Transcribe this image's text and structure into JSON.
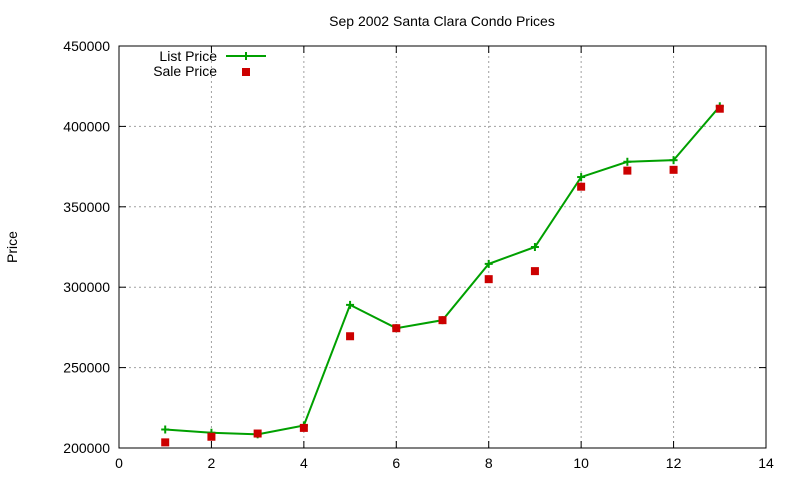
{
  "chart_data": {
    "type": "line",
    "title": "Sep 2002 Santa Clara Condo Prices",
    "xlabel": "",
    "ylabel": "Price",
    "xlim": [
      0,
      14
    ],
    "ylim": [
      200000,
      450000
    ],
    "xticks": [
      0,
      2,
      4,
      6,
      8,
      10,
      12,
      14
    ],
    "yticks": [
      200000,
      250000,
      300000,
      350000,
      400000,
      450000
    ],
    "grid": true,
    "legend_position": "top-left",
    "series": [
      {
        "name": "List Price",
        "style": "line-with-plus-markers",
        "color": "#00a000",
        "x": [
          1,
          2,
          3,
          4,
          5,
          6,
          7,
          8,
          9,
          10,
          11,
          12,
          13
        ],
        "y": [
          211500,
          209500,
          208500,
          214000,
          289000,
          274500,
          279500,
          314500,
          325000,
          368500,
          378000,
          379000,
          412500
        ]
      },
      {
        "name": "Sale Price",
        "style": "square-markers",
        "color": "#cc0000",
        "x": [
          1,
          2,
          3,
          4,
          5,
          6,
          7,
          8,
          9,
          10,
          11,
          12,
          13
        ],
        "y": [
          203500,
          207000,
          209000,
          212500,
          269500,
          274500,
          279500,
          305000,
          310000,
          362500,
          372500,
          373000,
          411000
        ]
      }
    ]
  }
}
